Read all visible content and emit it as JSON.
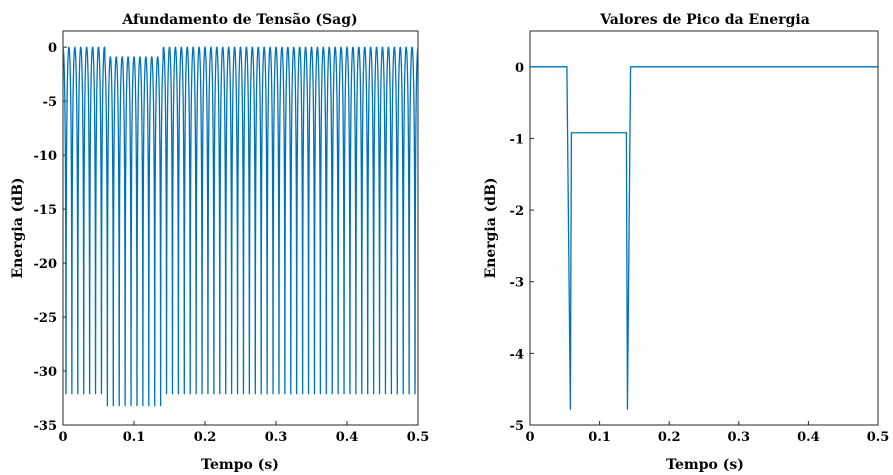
{
  "colors": {
    "series": "#0072BD",
    "axes": "#262626"
  },
  "chart_data": [
    {
      "type": "line",
      "title": "Afundamento de Tensão (Sag)",
      "xlabel": "Tempo  (s)",
      "ylabel": "Energia (dB)",
      "xlim": [
        0,
        0.5
      ],
      "ylim": [
        -35,
        1.5
      ],
      "xticks": [
        0,
        0.1,
        0.2,
        0.3,
        0.4,
        0.5
      ],
      "xtick_labels": [
        "0",
        "0.1",
        "0.2",
        "0.3",
        "0.4",
        "0.5"
      ],
      "yticks": [
        0,
        -5,
        -10,
        -15,
        -20,
        -25,
        -30,
        -35
      ],
      "ytick_labels": [
        "0",
        "-5",
        "-10",
        "-15",
        "-20",
        "-25",
        "-30",
        "-35"
      ],
      "grid": false,
      "series": [
        {
          "signal": "rectified_sine_energy_dB",
          "cycles_per_second": 120,
          "normal_peak": 0,
          "normal_trough": -32.1,
          "sag_start": 0.059,
          "sag_end": 0.141,
          "sag_peak": -0.9,
          "sag_trough": -33.2
        }
      ]
    },
    {
      "type": "line",
      "title": "Valores de Pico da Energia",
      "xlabel": "Tempo  (s)",
      "ylabel": "Energia (dB)",
      "xlim": [
        0,
        0.5
      ],
      "ylim": [
        -5,
        0.5
      ],
      "xticks": [
        0,
        0.1,
        0.2,
        0.3,
        0.4,
        0.5
      ],
      "xtick_labels": [
        "0",
        "0.1",
        "0.2",
        "0.3",
        "0.4",
        "0.5"
      ],
      "yticks": [
        0,
        -1,
        -2,
        -3,
        -4,
        -5
      ],
      "ytick_labels": [
        "0",
        "-1",
        "-2",
        "-3",
        "-4",
        "-5"
      ],
      "grid": false,
      "series": [
        {
          "x": [
            0,
            0.053,
            0.058,
            0.0595,
            0.1385,
            0.14,
            0.1445,
            0.5
          ],
          "y": [
            0,
            0,
            -4.78,
            -0.92,
            -0.92,
            -4.78,
            0,
            0
          ]
        }
      ]
    }
  ]
}
